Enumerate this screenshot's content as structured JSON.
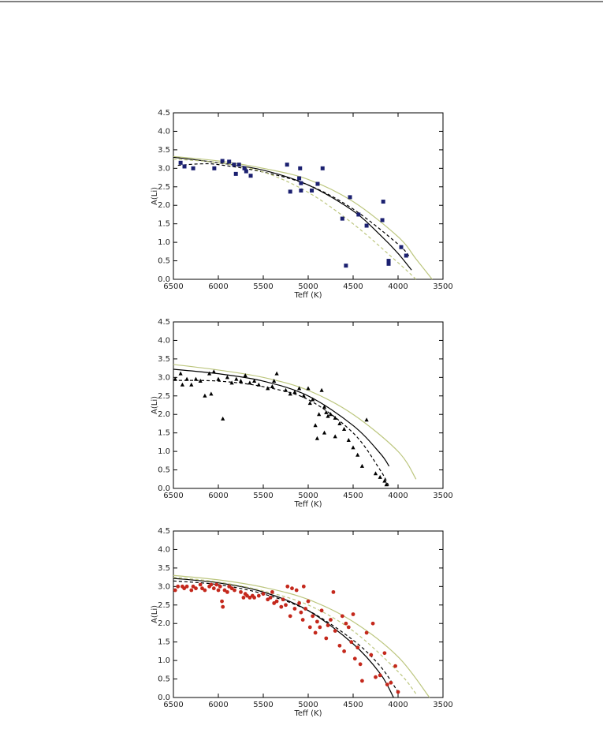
{
  "chart_data": [
    {
      "type": "scatter",
      "xlabel": "Teff (K)",
      "ylabel": "A(Li)",
      "xlim": [
        6500,
        3500
      ],
      "ylim": [
        0,
        4.5
      ],
      "xticks": [
        6500,
        6000,
        5500,
        5000,
        4500,
        4000,
        3500
      ],
      "yticks": [
        {
          "value": 0,
          "label": "0.0"
        },
        {
          "value": 0.5,
          "label": "0.5"
        },
        {
          "value": 1,
          "label": "1.0"
        },
        {
          "value": 1.5,
          "label": "1.5"
        },
        {
          "value": 2,
          "label": "2.0"
        },
        {
          "value": 2.5,
          "label": "2.5"
        },
        {
          "value": 3,
          "label": "3.0"
        },
        {
          "value": 3.5,
          "label": "3.5"
        },
        {
          "value": 4,
          "label": "4.0"
        },
        {
          "value": 4.5,
          "label": "4.5"
        }
      ],
      "series": [
        {
          "mode": "markers",
          "marker": "square",
          "color": "#1b2070",
          "x": [
            6420,
            6377,
            6280,
            6045,
            5955,
            5880,
            5825,
            5770,
            5805,
            5710,
            5690,
            5640,
            5235,
            5200,
            5090,
            5100,
            5080,
            5080,
            4960,
            4895,
            4840,
            4535,
            4620,
            4440,
            4350,
            4165,
            4175,
            4105,
            4105,
            4580,
            3965,
            3910
          ],
          "values": [
            3.15,
            3.05,
            3.0,
            3.0,
            3.2,
            3.18,
            3.1,
            3.1,
            2.85,
            3.0,
            2.92,
            2.8,
            3.1,
            2.37,
            3.0,
            2.73,
            2.6,
            2.4,
            2.4,
            2.58,
            3.0,
            2.22,
            1.64,
            1.75,
            1.45,
            2.1,
            1.6,
            0.5,
            0.42,
            0.37,
            0.87,
            0.64
          ]
        },
        {
          "mode": "line",
          "dashed": false,
          "color": "#000000",
          "x": [
            6500,
            6000,
            5500,
            5000,
            4500,
            4200,
            4000,
            3850
          ],
          "values": [
            3.3,
            3.15,
            2.95,
            2.55,
            1.85,
            1.2,
            0.7,
            0.25
          ]
        },
        {
          "mode": "line",
          "dashed": true,
          "color": "#000000",
          "x": [
            6450,
            6200,
            6000,
            5500,
            5000,
            4500,
            4000,
            3870
          ],
          "values": [
            3.08,
            3.12,
            3.1,
            2.9,
            2.55,
            1.9,
            0.95,
            0.6
          ]
        },
        {
          "mode": "line",
          "dashed": false,
          "color": "#bcc67e",
          "x": [
            6500,
            6000,
            5500,
            5000,
            4500,
            4000,
            3800,
            3620
          ],
          "values": [
            3.32,
            3.2,
            3.0,
            2.7,
            2.1,
            1.15,
            0.55,
            0.0
          ]
        },
        {
          "mode": "line",
          "dashed": true,
          "color": "#bcc67e",
          "x": [
            6500,
            6000,
            5500,
            5000,
            4500,
            4000,
            3800
          ],
          "values": [
            3.25,
            3.15,
            2.9,
            2.35,
            1.5,
            0.45,
            0.0
          ]
        }
      ]
    },
    {
      "type": "scatter",
      "xlabel": "Teff (K)",
      "ylabel": "A(Li)",
      "xlim": [
        6500,
        3500
      ],
      "ylim": [
        0,
        4.5
      ],
      "xticks": [
        6500,
        6000,
        5500,
        5000,
        4500,
        4000,
        3500
      ],
      "yticks": [
        {
          "value": 0,
          "label": "0.0"
        },
        {
          "value": 0.5,
          "label": "0.5"
        },
        {
          "value": 1,
          "label": "1.0"
        },
        {
          "value": 1.5,
          "label": "1.5"
        },
        {
          "value": 2,
          "label": "2.0"
        },
        {
          "value": 2.5,
          "label": "2.5"
        },
        {
          "value": 3,
          "label": "3.0"
        },
        {
          "value": 3.5,
          "label": "3.5"
        },
        {
          "value": 4,
          "label": "4.0"
        },
        {
          "value": 4.5,
          "label": "4.5"
        }
      ],
      "series": [
        {
          "mode": "markers",
          "marker": "triangle",
          "color": "#000000",
          "x": [
            6480,
            6420,
            6400,
            6350,
            6300,
            6250,
            6200,
            6150,
            6100,
            6080,
            6050,
            6000,
            5950,
            5900,
            5850,
            5800,
            5750,
            5700,
            5650,
            5600,
            5550,
            5450,
            5400,
            5380,
            5350,
            5250,
            5200,
            5150,
            5100,
            5050,
            5000,
            4980,
            4950,
            4920,
            4900,
            4880,
            4850,
            4820,
            4800,
            4780,
            4750,
            4700,
            4650,
            4600,
            4550,
            4500,
            4450,
            4400,
            4350,
            4250,
            4200,
            4150,
            4130,
            4820,
            4700
          ],
          "values": [
            2.95,
            3.1,
            2.8,
            2.95,
            2.8,
            2.95,
            2.9,
            2.5,
            3.1,
            2.55,
            3.15,
            2.95,
            1.88,
            3.0,
            2.85,
            2.95,
            2.9,
            3.05,
            2.85,
            2.9,
            2.8,
            2.7,
            2.75,
            2.9,
            3.1,
            2.65,
            2.55,
            2.6,
            2.7,
            2.5,
            2.7,
            2.3,
            2.4,
            1.7,
            1.35,
            2.0,
            2.65,
            2.2,
            2.05,
            1.95,
            2.0,
            1.9,
            1.75,
            1.6,
            1.3,
            1.1,
            0.9,
            0.6,
            1.85,
            0.4,
            0.3,
            0.2,
            0.1,
            1.5,
            1.4
          ]
        },
        {
          "mode": "line",
          "dashed": false,
          "color": "#000000",
          "x": [
            6500,
            6000,
            5500,
            5000,
            4500,
            4200,
            4100
          ],
          "values": [
            3.22,
            3.1,
            2.9,
            2.5,
            1.7,
            0.95,
            0.6
          ]
        },
        {
          "mode": "line",
          "dashed": true,
          "color": "#000000",
          "x": [
            6500,
            6000,
            5500,
            5000,
            4500,
            4200,
            4100
          ],
          "values": [
            2.92,
            2.9,
            2.75,
            2.4,
            1.5,
            0.5,
            0.05
          ]
        },
        {
          "mode": "line",
          "dashed": false,
          "color": "#bcc67e",
          "x": [
            6500,
            6000,
            5500,
            5000,
            4500,
            4000,
            3800
          ],
          "values": [
            3.35,
            3.2,
            3.0,
            2.65,
            2.0,
            1.0,
            0.25
          ]
        }
      ]
    },
    {
      "type": "scatter",
      "xlabel": "Teff (K)",
      "ylabel": "A(Li)",
      "xlim": [
        6500,
        3500
      ],
      "ylim": [
        0,
        4.5
      ],
      "xticks": [
        6500,
        6000,
        5500,
        5000,
        4500,
        4000,
        3500
      ],
      "yticks": [
        {
          "value": 0,
          "label": "0.0"
        },
        {
          "value": 0.5,
          "label": "0.5"
        },
        {
          "value": 1,
          "label": "1.0"
        },
        {
          "value": 1.5,
          "label": "1.5"
        },
        {
          "value": 2,
          "label": "2.0"
        },
        {
          "value": 2.5,
          "label": "2.5"
        },
        {
          "value": 3,
          "label": "3.0"
        },
        {
          "value": 3.5,
          "label": "3.5"
        },
        {
          "value": 4,
          "label": "4.0"
        },
        {
          "value": 4.5,
          "label": "4.5"
        }
      ],
      "series": [
        {
          "mode": "markers",
          "marker": "circle",
          "color": "#c4281c",
          "x": [
            6480,
            6450,
            6400,
            6380,
            6350,
            6300,
            6280,
            6250,
            6200,
            6180,
            6150,
            6100,
            6080,
            6050,
            6020,
            6000,
            5980,
            5960,
            5950,
            5930,
            5900,
            5880,
            5850,
            5820,
            5750,
            5720,
            5700,
            5680,
            5650,
            5620,
            5600,
            5550,
            5500,
            5450,
            5420,
            5400,
            5380,
            5350,
            5300,
            5280,
            5250,
            5230,
            5200,
            5180,
            5150,
            5130,
            5100,
            5080,
            5060,
            5050,
            5030,
            5000,
            4980,
            4950,
            4920,
            4900,
            4870,
            4850,
            4800,
            4780,
            4750,
            4720,
            4700,
            4650,
            4620,
            4600,
            4580,
            4550,
            4520,
            4500,
            4480,
            4450,
            4420,
            4400,
            4350,
            4300,
            4280,
            4250,
            4200,
            4150,
            4120,
            4080,
            4030,
            4000
          ],
          "values": [
            2.9,
            3.0,
            3.0,
            2.95,
            3.0,
            2.9,
            3.0,
            2.95,
            3.05,
            2.95,
            2.9,
            3.0,
            3.05,
            2.95,
            3.05,
            2.9,
            3.0,
            2.6,
            2.45,
            2.9,
            2.85,
            3.0,
            2.95,
            2.9,
            2.85,
            2.7,
            2.8,
            2.75,
            2.7,
            2.75,
            2.7,
            2.75,
            2.8,
            2.65,
            2.7,
            2.85,
            2.55,
            2.6,
            2.45,
            2.65,
            2.5,
            3.0,
            2.2,
            2.95,
            2.4,
            2.9,
            2.55,
            2.3,
            2.1,
            3.0,
            2.4,
            2.6,
            1.9,
            2.2,
            1.75,
            2.05,
            1.9,
            2.35,
            1.6,
            1.95,
            2.1,
            2.85,
            1.8,
            1.4,
            2.2,
            1.25,
            2.0,
            1.9,
            1.5,
            2.25,
            1.05,
            1.35,
            0.9,
            0.45,
            1.75,
            1.15,
            2.0,
            0.55,
            0.6,
            1.2,
            0.35,
            0.4,
            0.85,
            0.15
          ]
        },
        {
          "mode": "line",
          "dashed": false,
          "color": "#000000",
          "x": [
            6500,
            6000,
            5500,
            5000,
            4500,
            4200,
            4050
          ],
          "values": [
            3.22,
            3.1,
            2.85,
            2.35,
            1.45,
            0.65,
            0.0
          ]
        },
        {
          "mode": "line",
          "dashed": true,
          "color": "#000000",
          "x": [
            6500,
            6000,
            5500,
            5000,
            4500,
            4200,
            4000
          ],
          "values": [
            3.15,
            3.05,
            2.8,
            2.35,
            1.55,
            0.85,
            0.15
          ]
        },
        {
          "mode": "line",
          "dashed": false,
          "color": "#bcc67e",
          "x": [
            6500,
            6000,
            5500,
            5000,
            4500,
            4000,
            3650
          ],
          "values": [
            3.3,
            3.18,
            2.98,
            2.65,
            2.05,
            1.1,
            0.0
          ]
        },
        {
          "mode": "line",
          "dashed": true,
          "color": "#bcc67e",
          "x": [
            6500,
            6000,
            5500,
            5000,
            4500,
            4000,
            3800
          ],
          "values": [
            3.25,
            3.12,
            2.88,
            2.5,
            1.8,
            0.7,
            0.1
          ]
        }
      ]
    }
  ]
}
